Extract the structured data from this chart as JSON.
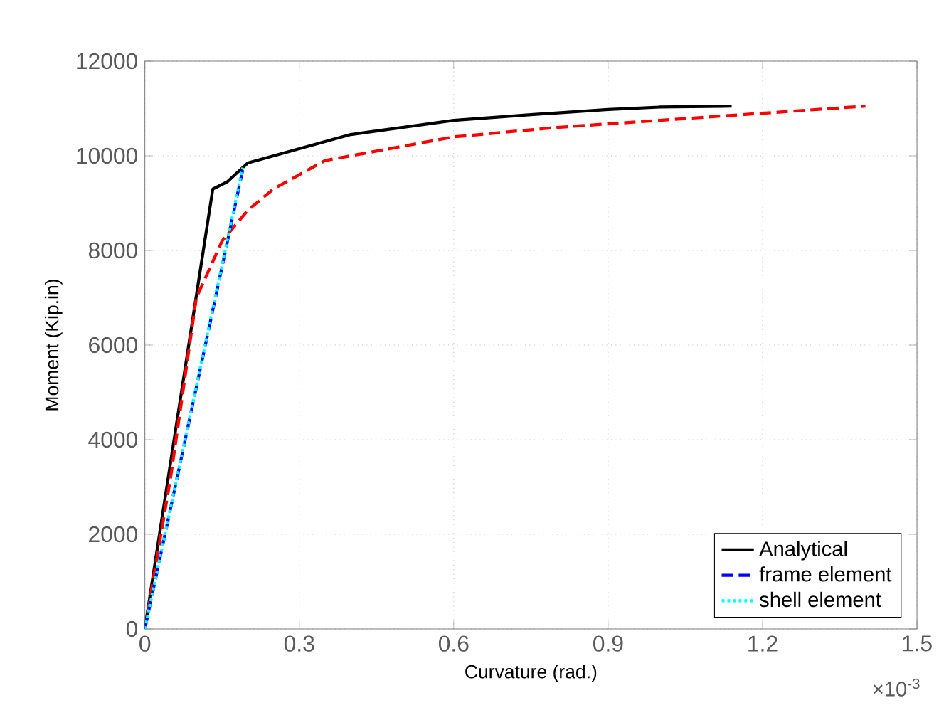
{
  "chart_data": {
    "type": "line",
    "xlabel": "Curvature (rad.)",
    "ylabel": "Moment (Kip.in)",
    "annotations": [
      "×10$^{-3}$"
    ],
    "xlim": [
      0,
      1.5
    ],
    "xticks": [
      0,
      0.3,
      0.6,
      0.9,
      1.2,
      1.5
    ],
    "ylim": [
      0,
      12000
    ],
    "yticks": [
      0,
      2000,
      4000,
      6000,
      8000,
      10000,
      12000
    ],
    "grid": true,
    "legend": "bottom right",
    "series": [
      {
        "name": "Analytical",
        "color": "#000000",
        "line_style": "solid",
        "x": [
          0,
          0.132,
          0.16,
          0.2,
          0.25,
          0.3,
          0.4,
          0.5,
          0.6,
          0.75,
          0.9,
          1.0,
          1.14
        ],
        "values": [
          0,
          9300,
          9450,
          9850,
          10000,
          10150,
          10450,
          10600,
          10750,
          10870,
          10980,
          11030,
          11050
        ]
      },
      {
        "color": "#ff0000",
        "line_style": "dashed",
        "x": [
          0,
          0.05,
          0.1,
          0.15,
          0.2,
          0.25,
          0.3,
          0.35,
          0.5,
          0.6,
          0.8,
          1.0,
          1.2,
          1.4
        ],
        "values": [
          0,
          3200,
          7000,
          8200,
          8850,
          9300,
          9600,
          9900,
          10200,
          10400,
          10600,
          10750,
          10900,
          11050
        ]
      },
      {
        "name": "frame element",
        "color": "#0000ff",
        "line_style": "dashed",
        "x": [
          0,
          0.19
        ],
        "values": [
          0,
          9700
        ]
      },
      {
        "name": "shell element",
        "color": "#00ffff",
        "line_style": "dotted",
        "x": [
          0,
          0.19
        ],
        "values": [
          0,
          9750
        ]
      }
    ]
  }
}
